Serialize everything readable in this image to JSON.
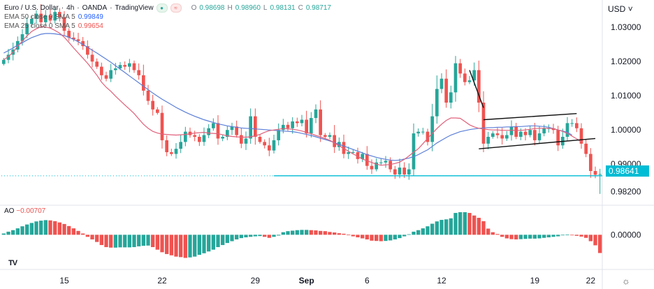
{
  "header": {
    "symbol": "Euro / U.S. Dollar",
    "timeframe": "4h",
    "exchange": "OANDA",
    "platform": "TradingView",
    "ohlc": [
      {
        "label": "O",
        "value": "0.98698"
      },
      {
        "label": "H",
        "value": "0.98960"
      },
      {
        "label": "L",
        "value": "0.98131"
      },
      {
        "label": "C",
        "value": "0.98717"
      }
    ],
    "ema50_label": "EMA 50 close 0 SMA 5",
    "ema50_value": "0.99849",
    "ema25_label": "EMA 25 close 0 SMA 5",
    "ema25_value": "0.99654"
  },
  "currency_selector": "USD",
  "current_price_tag": "0.98641",
  "ao_legend": {
    "label": "AO",
    "value": "−0.00707"
  },
  "colors": {
    "up": "#26a69a",
    "down": "#ef5350",
    "ema50": "#5b7fd8",
    "ema25": "#e0607a",
    "support": "#00bcd4",
    "pattern": "#111111"
  },
  "chart_data": [
    {
      "type": "candlestick",
      "title": "Euro / U.S. Dollar · 4h · OANDA",
      "ylabel": "USD",
      "ylim": [
        0.978,
        1.038
      ],
      "yticks": [
        1.03,
        1.02,
        1.01,
        1.0,
        0.99,
        0.982
      ],
      "ytick_labels": [
        "1.03000",
        "1.02000",
        "1.01000",
        "1.00000",
        "0.99000",
        "0.98200"
      ],
      "xticks": [
        {
          "label": "15",
          "idx": 13
        },
        {
          "label": "22",
          "idx": 34
        },
        {
          "label": "29",
          "idx": 54
        },
        {
          "label": "Sep",
          "idx": 65
        },
        {
          "label": "6",
          "idx": 78
        },
        {
          "label": "12",
          "idx": 94
        },
        {
          "label": "19",
          "idx": 114
        },
        {
          "label": "22",
          "idx": 126
        }
      ],
      "n_slots": 129,
      "closes": [
        1.0205,
        1.022,
        1.0235,
        1.026,
        1.028,
        1.031,
        1.0325,
        1.034,
        1.0315,
        1.0335,
        1.032,
        1.0345,
        1.033,
        1.029,
        1.027,
        1.0265,
        1.026,
        1.0245,
        1.022,
        1.02,
        1.0185,
        1.016,
        1.015,
        1.0175,
        1.018,
        1.019,
        1.0185,
        1.0195,
        1.0175,
        1.016,
        1.0115,
        1.0085,
        1.006,
        1.005,
        0.997,
        0.9935,
        0.993,
        0.9945,
        0.9965,
        0.9995,
        0.9985,
        0.998,
        0.9965,
        0.9985,
        1.0005,
        1.002,
        0.9975,
        0.998,
        1.0,
        1.001,
        0.9985,
        0.996,
        0.9975,
        1.004,
        0.998,
        0.9965,
        0.9955,
        0.994,
        0.997,
        1.0,
        1.0015,
        1.0005,
        1.0025,
        1.002,
        1.003,
        0.999,
        1.0035,
        1.006,
        0.9985,
        0.998,
        0.9985,
        0.995,
        0.9965,
        0.993,
        0.9935,
        0.9935,
        0.9915,
        0.993,
        0.9895,
        0.9885,
        0.9905,
        0.9905,
        0.991,
        0.9885,
        0.987,
        0.989,
        0.987,
        0.9885,
        0.999,
        0.9995,
        0.9995,
        0.9965,
        1.004,
        1.012,
        1.015,
        1.008,
        1.011,
        1.0195,
        1.0165,
        1.014,
        1.0145,
        1.0175,
        1.008,
        0.996,
        0.998,
        0.999,
        0.9985,
        0.9975,
        0.9985,
        1.001,
        0.998,
        0.9995,
        0.9985,
        1.0,
        0.997,
        0.999,
        1.0005,
        1.0005,
        1.0,
        0.9955,
        0.998,
        1.002,
        1.002,
        1.0005,
        0.996,
        0.993,
        0.988,
        0.9869,
        0.9871
      ],
      "ema25": [
        1.0205,
        1.0215,
        1.0227,
        1.0245,
        1.026,
        1.0275,
        1.0288,
        1.0296,
        1.0302,
        1.0301,
        1.0298,
        1.0291,
        1.0283,
        1.0271,
        1.0256,
        1.024,
        1.0225,
        1.021,
        1.0195,
        1.0178,
        1.016,
        1.014,
        1.0125,
        1.0113,
        1.0099,
        1.0086,
        1.0073,
        1.0061,
        1.0048,
        1.0032,
        1.0017,
        1.0005,
        0.9996,
        0.9991,
        0.9988,
        0.9987,
        0.9986,
        0.9985,
        0.9986,
        0.9987,
        0.9989,
        0.9991,
        0.9992,
        0.9993,
        0.9991,
        0.999,
        0.9989,
        0.9986,
        0.9983,
        0.9981,
        0.998,
        0.9979,
        0.9979,
        0.998,
        0.9983,
        0.9987,
        0.9993,
        0.9998,
        1.0,
        1.0002,
        1.0004,
        1.0003,
        1.0002,
        1.0,
        0.9997,
        0.9993,
        0.9989,
        0.9984,
        0.998,
        0.9975,
        0.997,
        0.9962,
        0.9954,
        0.9946,
        0.9938,
        0.993,
        0.9923,
        0.9915,
        0.991,
        0.9905,
        0.99,
        0.9897,
        0.9898,
        0.9899,
        0.9902,
        0.9906,
        0.9914,
        0.9924,
        0.9935,
        0.9945,
        0.996,
        0.9975,
        0.999,
        1.0004,
        1.0017,
        1.0028,
        1.0035,
        1.0035,
        1.0034,
        1.0025,
        1.0015,
        1.0009,
        1.0005,
        1.0003,
        1.0001,
        1.0,
        1.0,
        0.9999,
        0.9999,
        0.9999,
        0.9999,
        0.9999,
        1.0,
        1.0002,
        1.0004,
        1.0005,
        1.0005,
        1.0005,
        1.0004,
        1.0,
        0.9996,
        0.999,
        0.9982,
        0.9974,
        0.9965
      ],
      "ema50": [
        1.0225,
        1.0232,
        1.024,
        1.0248,
        1.0255,
        1.0263,
        1.027,
        1.0275,
        1.028,
        1.0282,
        1.0282,
        1.0281,
        1.0279,
        1.0276,
        1.0271,
        1.0265,
        1.0258,
        1.025,
        1.0242,
        1.0233,
        1.0225,
        1.0216,
        1.0207,
        1.0198,
        1.0188,
        1.0178,
        1.0168,
        1.0158,
        1.0148,
        1.0138,
        1.0128,
        1.0118,
        1.0108,
        1.0099,
        1.009,
        1.0082,
        1.0074,
        1.0066,
        1.0059,
        1.0052,
        1.0046,
        1.004,
        1.0035,
        1.003,
        1.0026,
        1.0022,
        1.0018,
        1.0015,
        1.0012,
        1.001,
        1.0008,
        1.0006,
        1.0005,
        1.0004,
        1.0003,
        1.0002,
        1.0001,
        1.0,
        0.9999,
        0.9998,
        0.9997,
        0.9996,
        0.9995,
        0.9993,
        0.999,
        0.9987,
        0.9984,
        0.998,
        0.9976,
        0.9972,
        0.9968,
        0.9963,
        0.9958,
        0.9953,
        0.9948,
        0.9943,
        0.9938,
        0.9933,
        0.9928,
        0.9924,
        0.992,
        0.9917,
        0.9914,
        0.9912,
        0.9911,
        0.9912,
        0.9915,
        0.9918,
        0.9922,
        0.9928,
        0.9935,
        0.9942,
        0.9952,
        0.9962,
        0.997,
        0.9978,
        0.9985,
        0.999,
        0.9995,
        0.9998,
        1.0001,
        1.0003,
        1.0005,
        1.0006,
        1.0007,
        1.0007,
        1.0008,
        1.0008,
        1.0009,
        1.0009,
        1.001,
        1.001,
        1.0011,
        1.0012,
        1.0012,
        1.0011,
        1.001,
        1.0008,
        1.0004,
        1.0,
        0.9997,
        0.9993,
        0.9985
      ],
      "patterns": [
        {
          "name": "pole",
          "points": [
            [
              100,
              1.0175
            ],
            [
              103,
              1.0065
            ]
          ]
        },
        {
          "name": "flag-upper",
          "points": [
            [
              103,
              1.003
            ],
            [
              123,
              1.0048
            ]
          ]
        },
        {
          "name": "flag-lower",
          "points": [
            [
              102,
              0.9945
            ],
            [
              127,
              0.9975
            ]
          ]
        },
        {
          "name": "support",
          "value": 0.9866,
          "from_idx": 58
        }
      ]
    },
    {
      "type": "bar",
      "title": "AO",
      "ylim": [
        -0.0135,
        0.0115
      ],
      "yticks": [
        0.0
      ],
      "ytick_labels": [
        "0.00000"
      ],
      "values": [
        0.0005,
        0.0012,
        0.0018,
        0.0025,
        0.0033,
        0.004,
        0.0046,
        0.0052,
        0.0055,
        0.0057,
        0.0056,
        0.0053,
        0.0048,
        0.0042,
        0.0034,
        0.0025,
        0.0015,
        0.0005,
        -0.0008,
        -0.0018,
        -0.0028,
        -0.004,
        -0.0048,
        -0.005,
        -0.005,
        -0.0049,
        -0.0049,
        -0.0049,
        -0.0048,
        -0.0045,
        -0.0043,
        -0.0042,
        -0.0048,
        -0.0058,
        -0.0068,
        -0.0075,
        -0.008,
        -0.0085,
        -0.0087,
        -0.009,
        -0.0088,
        -0.0085,
        -0.0078,
        -0.0072,
        -0.0065,
        -0.0058,
        -0.0048,
        -0.004,
        -0.0032,
        -0.0025,
        -0.0018,
        -0.0013,
        -0.001,
        -0.0008,
        -0.0006,
        -0.0005,
        -0.0008,
        -0.0012,
        -0.0008,
        -0.0003,
        0.001,
        0.0014,
        0.0016,
        0.0018,
        0.0019,
        0.0019,
        0.0018,
        0.0017,
        0.0015,
        0.0014,
        0.0011,
        0.0009,
        0.0006,
        0.0004,
        0.0001,
        -0.0006,
        -0.001,
        -0.0014,
        -0.0018,
        -0.0023,
        -0.0024,
        -0.0025,
        -0.0024,
        -0.0022,
        -0.0018,
        -0.0013,
        -0.0006,
        0.0002,
        0.0012,
        0.0018,
        0.0025,
        0.0033,
        0.0043,
        0.0052,
        0.0058,
        0.006,
        0.0064,
        0.0085,
        0.0088,
        0.0088,
        0.0085,
        0.0075,
        0.0066,
        0.0053,
        0.0024,
        0.001,
        0.0003,
        -0.0008,
        -0.0014,
        -0.0017,
        -0.0018,
        -0.0017,
        -0.0016,
        -0.0015,
        -0.0015,
        -0.0014,
        -0.0012,
        -0.001,
        -0.0008,
        -0.0006,
        -0.0002,
        0.0001,
        -0.0001,
        -0.0004,
        -0.0007,
        -0.0012,
        -0.0025,
        -0.0041,
        -0.0071
      ]
    }
  ]
}
